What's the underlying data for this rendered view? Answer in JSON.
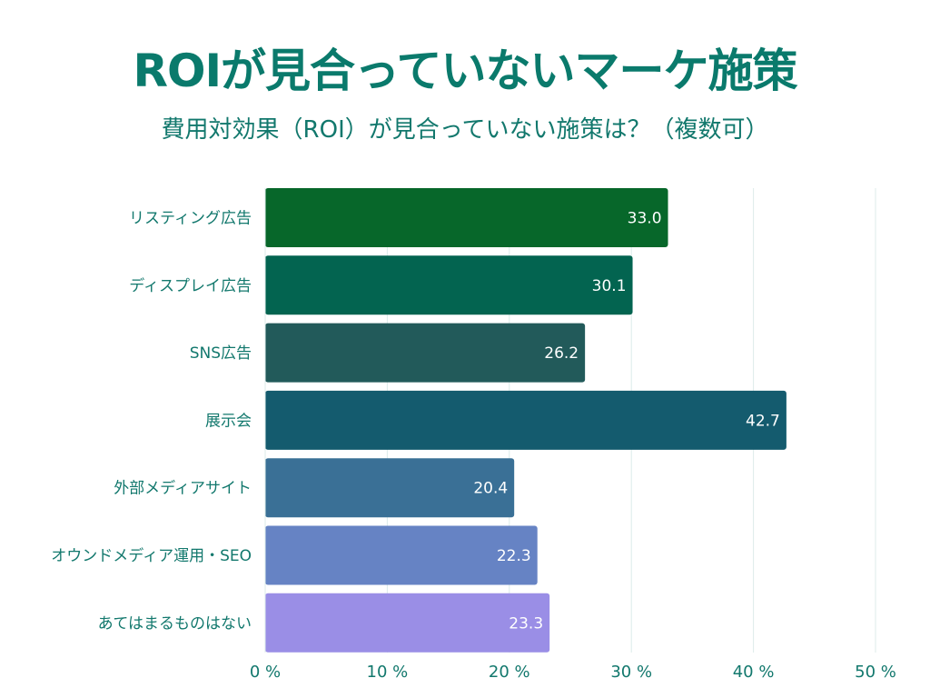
{
  "chart_data": {
    "type": "bar",
    "orientation": "horizontal",
    "title": "ROIが見合っていないマーケ施策",
    "subtitle": "費用対効果（ROI）が見合っていない施策は？（複数可）",
    "categories": [
      "リスティング広告",
      "ディスプレイ広告",
      "SNS広告",
      "展示会",
      "外部メディアサイト",
      "オウンドメディア運用・SEO",
      "あてはまるものはない"
    ],
    "values": [
      33.0,
      30.1,
      26.2,
      42.7,
      20.4,
      22.3,
      23.3
    ],
    "value_labels": [
      "33.0",
      "30.1",
      "26.2",
      "42.7",
      "20.4",
      "22.3",
      "23.3"
    ],
    "colors": [
      "#07672a",
      "#036450",
      "#225a5a",
      "#145b6e",
      "#3a7096",
      "#6683c4",
      "#9a8ee6"
    ],
    "xlim": [
      0,
      50
    ],
    "ticks": [
      0,
      10,
      20,
      30,
      40,
      50
    ],
    "tick_labels": [
      "0 %",
      "10 %",
      "20 %",
      "30 %",
      "40 %",
      "50 %"
    ],
    "xlabel": "",
    "ylabel": "",
    "grid": "vertical",
    "legend": "none"
  }
}
